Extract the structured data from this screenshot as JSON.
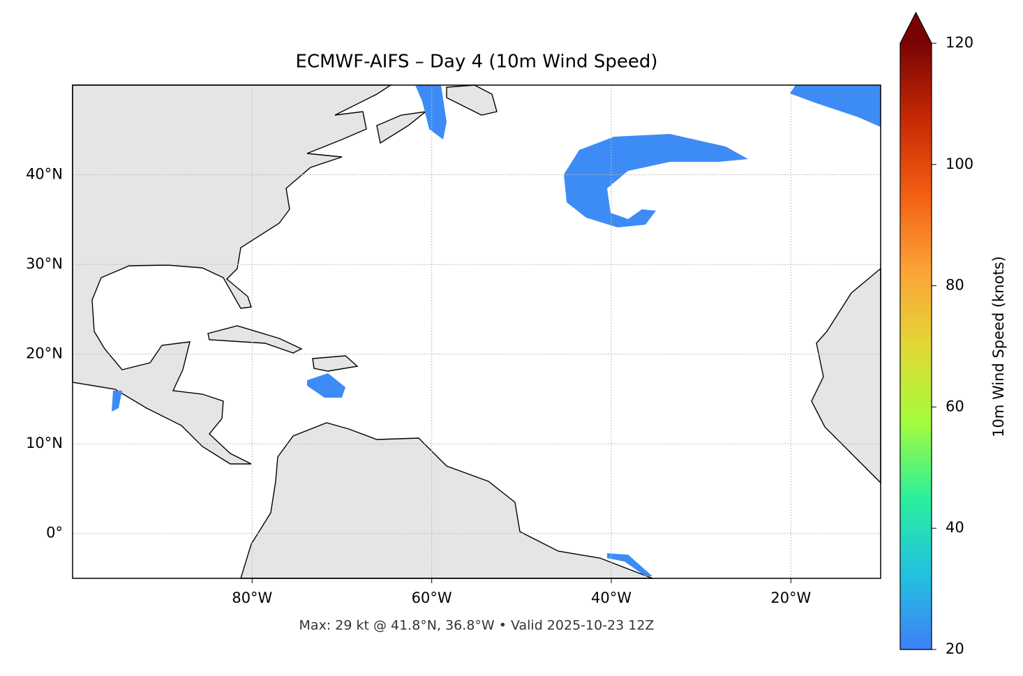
{
  "chart_data": {
    "type": "map",
    "title": "ECMWF-AIFS – Day 4 (10m Wind Speed)",
    "footnote": "Max: 29 kt @ 41.8°N, 36.8°W • Valid 2025-10-23 12Z",
    "xlim": [
      -100,
      -10
    ],
    "ylim": [
      -5,
      50
    ],
    "xticks": [
      {
        "value": -80,
        "label": "80°W"
      },
      {
        "value": -60,
        "label": "60°W"
      },
      {
        "value": -40,
        "label": "40°W"
      },
      {
        "value": -20,
        "label": "20°W"
      }
    ],
    "yticks": [
      {
        "value": 0,
        "label": "0°"
      },
      {
        "value": 10,
        "label": "10°N"
      },
      {
        "value": 20,
        "label": "20°N"
      },
      {
        "value": 30,
        "label": "30°N"
      },
      {
        "value": 40,
        "label": "40°N"
      }
    ],
    "grid": true,
    "colorbar": {
      "label": "10m Wind Speed (knots)",
      "lim": [
        20,
        120
      ],
      "ticks": [
        20,
        40,
        60,
        80,
        100,
        120
      ],
      "colors": [
        "#3f7ff7",
        "#22c2e0",
        "#2bef9c",
        "#a4fc3c",
        "#e2d836",
        "#fca336",
        "#f35f13",
        "#c62905",
        "#7a0403"
      ],
      "extend": "max"
    }
  }
}
